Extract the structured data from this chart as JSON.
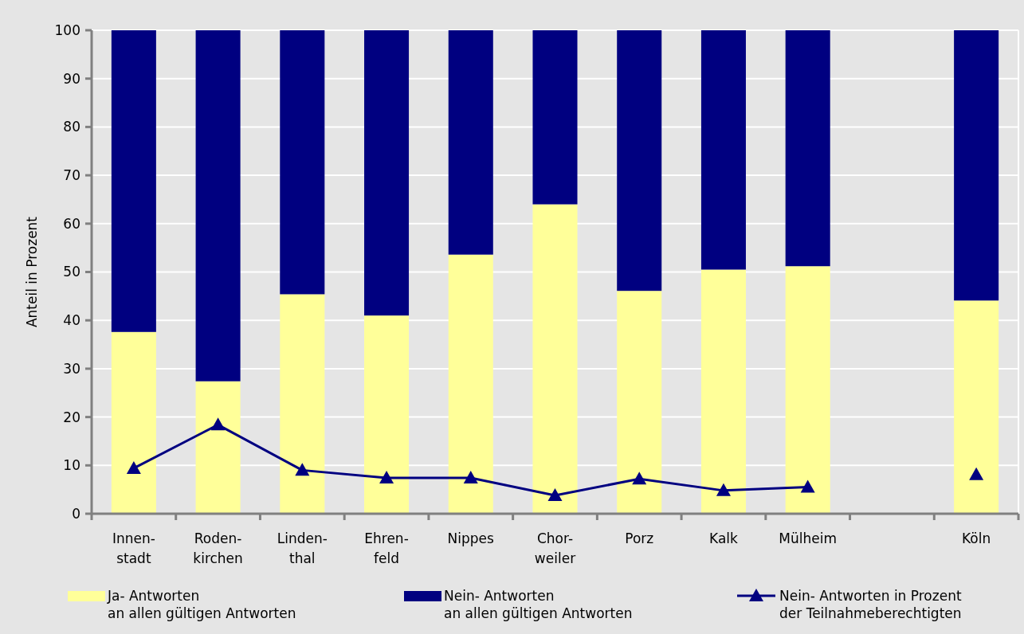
{
  "chart_data": {
    "type": "bar",
    "stacked": true,
    "ylabel": "Anteil in Prozent",
    "categories": [
      "Innen-\nstadt",
      "Roden-\nkirchen",
      "Linden-\nthal",
      "Ehren-\nfeld",
      "Nippes",
      "Chor-\nweiler",
      "Porz",
      "Kalk",
      "Mülheim",
      null,
      "Köln"
    ],
    "series": [
      {
        "name": "Ja- Antworten\nan allen gültigen Antworten",
        "color": "#ffff99",
        "values": [
          37.6,
          27.4,
          45.4,
          41.0,
          53.6,
          64.0,
          46.1,
          50.5,
          51.2,
          null,
          44.1
        ]
      },
      {
        "name": "Nein- Antworten\nan allen gültigen Antworten",
        "color": "#000080",
        "values": [
          62.4,
          72.6,
          54.6,
          59.0,
          46.4,
          36.0,
          53.9,
          49.5,
          48.8,
          null,
          55.9
        ]
      },
      {
        "name": "Nein- Antworten in Prozent\nder Teilnahmeberechtigten",
        "type": "line",
        "color": "#000080",
        "marker": "triangle",
        "values": [
          9.4,
          18.4,
          9.0,
          7.4,
          7.4,
          3.8,
          7.2,
          4.8,
          5.5,
          null,
          8.1
        ]
      }
    ],
    "ylim": [
      0,
      100
    ],
    "yticks": [
      0,
      10,
      20,
      30,
      40,
      50,
      60,
      70,
      80,
      90,
      100
    ],
    "grid": "y",
    "legend": "bottom"
  }
}
